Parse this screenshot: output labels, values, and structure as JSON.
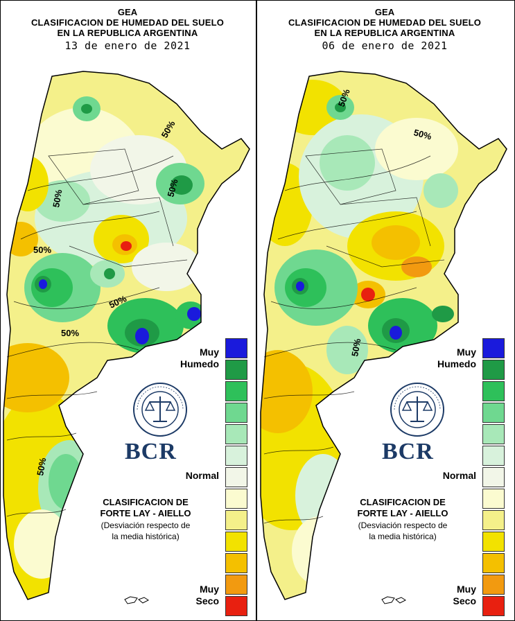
{
  "panels": [
    {
      "title_org": "GEA",
      "title_line1": "CLASIFICACION DE HUMEDAD DEL SUELO",
      "title_line2": "EN LA REPUBLICA ARGENTINA",
      "date": "13 de enero de 2021",
      "contour_labels": [
        "50%",
        "50%",
        "50%",
        "50%",
        "50%",
        "50%",
        "50%"
      ]
    },
    {
      "title_org": "GEA",
      "title_line1": "CLASIFICACION DE HUMEDAD DEL SUELO",
      "title_line2": "EN LA REPUBLICA ARGENTINA",
      "date": "06 de enero de 2021",
      "contour_labels": [
        "50%",
        "50%",
        "50%"
      ]
    }
  ],
  "legend": {
    "top_label_1": "Muy",
    "top_label_2": "Humedo",
    "middle_label": "Normal",
    "bottom_label_1": "Muy",
    "bottom_label_2": "Seco",
    "colors": [
      "#1a1adc",
      "#1f9a46",
      "#2ec05a",
      "#6fd890",
      "#a8e8b8",
      "#d8f2dc",
      "#f2f6e8",
      "#fbfbd0",
      "#f4f08a",
      "#f2e200",
      "#f4c000",
      "#f29a10",
      "#e82010"
    ],
    "source_line1": "CLASIFICACION DE",
    "source_line2": "FORTE LAY - AIELLO",
    "note_line1": "(Desviación respecto de",
    "note_line2": "la media histórica)"
  },
  "logo": {
    "ring_text": "BOLSA DE COMERCIO DE ROSARIO",
    "brand": "BCR"
  }
}
